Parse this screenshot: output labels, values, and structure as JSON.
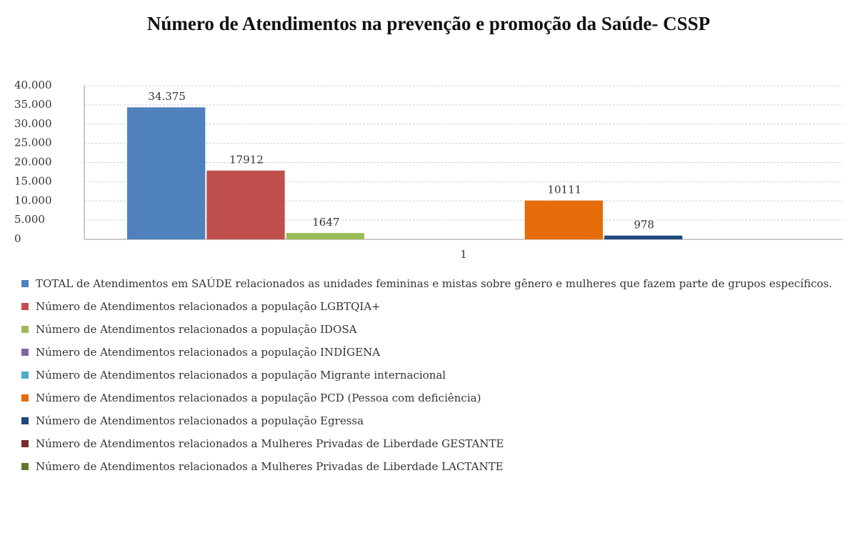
{
  "chart_data": {
    "type": "bar",
    "title": "Número de Atendimentos na prevenção e promoção da Saúde- CSSP",
    "categories": [
      "1"
    ],
    "series": [
      {
        "name": "TOTAL de Atendimentos em SAÚDE relacionados as unidades femininas e mistas sobre gênero e mulheres que fazem parte de grupos específicos.",
        "color": "#4f81bd",
        "values": [
          34375
        ],
        "value_labels": [
          "34.375"
        ]
      },
      {
        "name": "Número de Atendimentos relacionados a população LGBTQIA+",
        "color": "#c0504d",
        "values": [
          17912
        ]
      },
      {
        "name": "Número de Atendimentos relacionados a população IDOSA",
        "color": "#9bbb59",
        "values": [
          1647
        ]
      },
      {
        "name": "Número de Atendimentos relacionados a população INDÍGENA",
        "color": "#8064a2",
        "values": [
          null
        ]
      },
      {
        "name": "Número de Atendimentos relacionados a população Migrante internacional",
        "color": "#4bacc6",
        "values": [
          null
        ]
      },
      {
        "name": "Número de Atendimentos relacionados a população PCD (Pessoa com deficiência)",
        "color": "#e46c0a",
        "values": [
          10111
        ]
      },
      {
        "name": "Número de Atendimentos relacionados a população Egressa",
        "color": "#1f497d",
        "values": [
          978
        ]
      },
      {
        "name": "Número de Atendimentos relacionados a Mulheres Privadas de Liberdade GESTANTE",
        "color": "#772c2a",
        "values": [
          null
        ]
      },
      {
        "name": "Número de Atendimentos relacionados a Mulheres Privadas de Liberdade LACTANTE",
        "color": "#5f7530",
        "values": [
          null
        ]
      }
    ],
    "ylim": [
      0,
      40000
    ],
    "yticks": [
      0,
      {
        "value": 5000,
        "label": "5.000"
      },
      {
        "value": 10000,
        "label": "10.000"
      },
      {
        "value": 15000,
        "label": "15.000"
      },
      {
        "value": 20000,
        "label": "20.000"
      },
      {
        "value": 25000,
        "label": "25.000"
      },
      {
        "value": 30000,
        "label": "30.000"
      },
      {
        "value": 35000,
        "label": "35.000"
      },
      {
        "value": 40000,
        "label": "40.000"
      }
    ],
    "grid": true
  }
}
